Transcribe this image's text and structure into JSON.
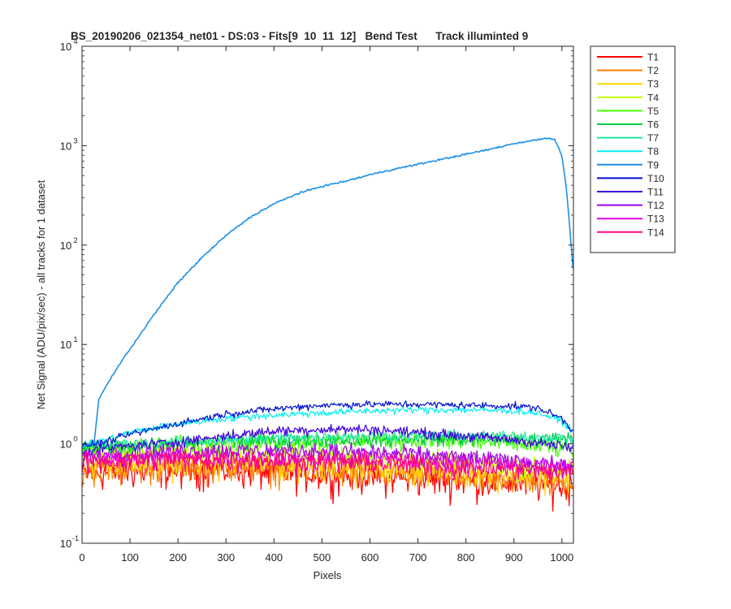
{
  "chart_data": {
    "type": "line",
    "title": "BS_20190206_021354_net01 - DS:03 - Fits[9  10  11  12]   Bend Test      Track illuminted 9",
    "xlabel": "Pixels",
    "ylabel": "Net Signal (ADU/pix/sec) - all tracks for 1 dataset",
    "xlim": [
      0,
      1024
    ],
    "ylim": [
      0.1,
      10000
    ],
    "yscale": "log",
    "grid": false,
    "legend_position": "outside-top-right",
    "x_ticks": [
      0,
      100,
      200,
      300,
      400,
      500,
      600,
      700,
      800,
      900,
      1000
    ],
    "y_ticks": [
      {
        "value": 0.1,
        "base": "10",
        "exp": "-1"
      },
      {
        "value": 1,
        "base": "10",
        "exp": "0"
      },
      {
        "value": 10,
        "base": "10",
        "exp": "1"
      },
      {
        "value": 100,
        "base": "10",
        "exp": "2"
      },
      {
        "value": 1000,
        "base": "10",
        "exp": "3"
      },
      {
        "value": 10000,
        "base": "10",
        "exp": "4"
      }
    ],
    "series": [
      {
        "name": "T1",
        "color": "#ff0000",
        "noise": 0.35,
        "points": [
          [
            0,
            0.5
          ],
          [
            100,
            0.53
          ],
          [
            200,
            0.55
          ],
          [
            300,
            0.55
          ],
          [
            400,
            0.52
          ],
          [
            500,
            0.5
          ],
          [
            600,
            0.48
          ],
          [
            700,
            0.45
          ],
          [
            800,
            0.43
          ],
          [
            900,
            0.41
          ],
          [
            1000,
            0.38
          ],
          [
            1024,
            0.38
          ]
        ]
      },
      {
        "name": "T2",
        "color": "#ff7f00",
        "noise": 0.32,
        "points": [
          [
            0,
            0.55
          ],
          [
            100,
            0.57
          ],
          [
            200,
            0.6
          ],
          [
            300,
            0.6
          ],
          [
            400,
            0.57
          ],
          [
            500,
            0.55
          ],
          [
            600,
            0.52
          ],
          [
            700,
            0.5
          ],
          [
            800,
            0.47
          ],
          [
            900,
            0.45
          ],
          [
            1000,
            0.42
          ],
          [
            1024,
            0.42
          ]
        ]
      },
      {
        "name": "T3",
        "color": "#ffd400",
        "noise": 0.3,
        "points": [
          [
            0,
            0.6
          ],
          [
            100,
            0.62
          ],
          [
            200,
            0.65
          ],
          [
            300,
            0.65
          ],
          [
            400,
            0.62
          ],
          [
            500,
            0.6
          ],
          [
            600,
            0.57
          ],
          [
            700,
            0.55
          ],
          [
            800,
            0.52
          ],
          [
            900,
            0.5
          ],
          [
            1000,
            0.47
          ],
          [
            1024,
            0.47
          ]
        ]
      },
      {
        "name": "T4",
        "color": "#bfff00",
        "noise": 0.25,
        "points": [
          [
            0,
            0.72
          ],
          [
            100,
            0.8
          ],
          [
            200,
            0.85
          ],
          [
            300,
            0.85
          ],
          [
            400,
            0.82
          ],
          [
            500,
            0.78
          ],
          [
            600,
            0.75
          ],
          [
            700,
            0.7
          ],
          [
            800,
            0.65
          ],
          [
            900,
            0.6
          ],
          [
            1000,
            0.55
          ],
          [
            1024,
            0.55
          ]
        ]
      },
      {
        "name": "T5",
        "color": "#40ff00",
        "noise": 0.2,
        "points": [
          [
            0,
            0.85
          ],
          [
            100,
            0.95
          ],
          [
            200,
            1.0
          ],
          [
            300,
            1.02
          ],
          [
            400,
            1.05
          ],
          [
            500,
            1.05
          ],
          [
            600,
            1.08
          ],
          [
            700,
            1.08
          ],
          [
            800,
            1.05
          ],
          [
            900,
            1.0
          ],
          [
            1000,
            0.9
          ],
          [
            1024,
            0.85
          ]
        ]
      },
      {
        "name": "T6",
        "color": "#00cc40",
        "noise": 0.15,
        "points": [
          [
            0,
            0.9
          ],
          [
            100,
            0.95
          ],
          [
            200,
            1.0
          ],
          [
            300,
            1.05
          ],
          [
            400,
            1.08
          ],
          [
            500,
            1.1
          ],
          [
            600,
            1.1
          ],
          [
            700,
            1.12
          ],
          [
            800,
            1.12
          ],
          [
            900,
            1.1
          ],
          [
            1000,
            1.15
          ],
          [
            1024,
            1.2
          ]
        ]
      },
      {
        "name": "T7",
        "color": "#1ee8a0",
        "noise": 0.12,
        "points": [
          [
            0,
            0.95
          ],
          [
            100,
            1.0
          ],
          [
            200,
            1.05
          ],
          [
            300,
            1.1
          ],
          [
            400,
            1.15
          ],
          [
            500,
            1.2
          ],
          [
            600,
            1.2
          ],
          [
            700,
            1.22
          ],
          [
            800,
            1.22
          ],
          [
            900,
            1.2
          ],
          [
            1000,
            1.15
          ],
          [
            1024,
            1.1
          ]
        ]
      },
      {
        "name": "T8",
        "color": "#00f0f0",
        "noise": 0.08,
        "points": [
          [
            0,
            0.95
          ],
          [
            50,
            1.1
          ],
          [
            100,
            1.3
          ],
          [
            200,
            1.6
          ],
          [
            300,
            1.8
          ],
          [
            400,
            1.95
          ],
          [
            500,
            2.05
          ],
          [
            600,
            2.15
          ],
          [
            700,
            2.2
          ],
          [
            800,
            2.2
          ],
          [
            900,
            2.15
          ],
          [
            950,
            2.05
          ],
          [
            1000,
            1.7
          ],
          [
            1024,
            1.3
          ]
        ]
      },
      {
        "name": "T9",
        "color": "#1c90e8",
        "noise": 0.02,
        "points": [
          [
            0,
            0.95
          ],
          [
            25,
            1.0
          ],
          [
            35,
            2.8
          ],
          [
            50,
            3.8
          ],
          [
            75,
            6
          ],
          [
            100,
            9
          ],
          [
            150,
            20
          ],
          [
            200,
            42
          ],
          [
            250,
            75
          ],
          [
            300,
            125
          ],
          [
            350,
            190
          ],
          [
            400,
            260
          ],
          [
            450,
            330
          ],
          [
            500,
            390
          ],
          [
            550,
            440
          ],
          [
            600,
            510
          ],
          [
            650,
            580
          ],
          [
            700,
            650
          ],
          [
            750,
            730
          ],
          [
            800,
            820
          ],
          [
            850,
            920
          ],
          [
            900,
            1050
          ],
          [
            950,
            1150
          ],
          [
            970,
            1200
          ],
          [
            985,
            1150
          ],
          [
            1000,
            800
          ],
          [
            1010,
            350
          ],
          [
            1020,
            90
          ],
          [
            1024,
            50
          ]
        ]
      },
      {
        "name": "T10",
        "color": "#0010d0",
        "noise": 0.08,
        "points": [
          [
            0,
            0.95
          ],
          [
            50,
            1.05
          ],
          [
            100,
            1.25
          ],
          [
            200,
            1.6
          ],
          [
            300,
            2.0
          ],
          [
            400,
            2.25
          ],
          [
            500,
            2.45
          ],
          [
            600,
            2.5
          ],
          [
            700,
            2.5
          ],
          [
            800,
            2.45
          ],
          [
            900,
            2.4
          ],
          [
            950,
            2.3
          ],
          [
            1000,
            1.8
          ],
          [
            1024,
            1.3
          ]
        ]
      },
      {
        "name": "T11",
        "color": "#4000e0",
        "noise": 0.12,
        "points": [
          [
            0,
            0.85
          ],
          [
            100,
            0.95
          ],
          [
            200,
            1.05
          ],
          [
            300,
            1.2
          ],
          [
            400,
            1.35
          ],
          [
            500,
            1.4
          ],
          [
            600,
            1.4
          ],
          [
            700,
            1.3
          ],
          [
            800,
            1.2
          ],
          [
            900,
            1.1
          ],
          [
            1000,
            0.95
          ],
          [
            1024,
            0.9
          ]
        ]
      },
      {
        "name": "T12",
        "color": "#a000f0",
        "noise": 0.2,
        "points": [
          [
            0,
            0.75
          ],
          [
            100,
            0.8
          ],
          [
            200,
            0.85
          ],
          [
            300,
            0.85
          ],
          [
            400,
            0.85
          ],
          [
            500,
            0.85
          ],
          [
            600,
            0.82
          ],
          [
            700,
            0.78
          ],
          [
            800,
            0.72
          ],
          [
            900,
            0.68
          ],
          [
            1000,
            0.6
          ],
          [
            1024,
            0.6
          ]
        ]
      },
      {
        "name": "T13",
        "color": "#e000e0",
        "noise": 0.22,
        "points": [
          [
            0,
            0.7
          ],
          [
            100,
            0.72
          ],
          [
            200,
            0.75
          ],
          [
            300,
            0.75
          ],
          [
            400,
            0.72
          ],
          [
            500,
            0.72
          ],
          [
            600,
            0.7
          ],
          [
            700,
            0.68
          ],
          [
            800,
            0.65
          ],
          [
            900,
            0.62
          ],
          [
            1000,
            0.58
          ],
          [
            1024,
            0.58
          ]
        ]
      },
      {
        "name": "T14",
        "color": "#ff0080",
        "noise": 0.25,
        "points": [
          [
            0,
            0.65
          ],
          [
            100,
            0.68
          ],
          [
            200,
            0.7
          ],
          [
            300,
            0.7
          ],
          [
            400,
            0.68
          ],
          [
            500,
            0.66
          ],
          [
            600,
            0.64
          ],
          [
            700,
            0.62
          ],
          [
            800,
            0.58
          ],
          [
            900,
            0.55
          ],
          [
            1000,
            0.52
          ],
          [
            1024,
            0.52
          ]
        ]
      }
    ]
  }
}
